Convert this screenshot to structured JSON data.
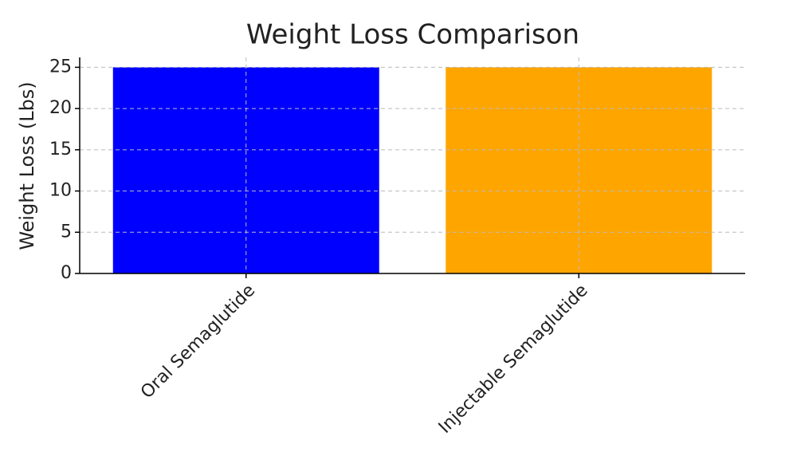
{
  "chart_data": {
    "type": "bar",
    "title": "Weight Loss Comparison",
    "y_label": "Weight Loss (Lbs)",
    "categories": [
      "Oral Semaglutide",
      "Injectable Semaglutide"
    ],
    "values": [
      25,
      25
    ],
    "colors": [
      "#0000ff",
      "#ffa500"
    ],
    "ylim": [
      0,
      26.2
    ],
    "yticks": [
      0,
      5,
      10,
      15,
      20,
      25
    ],
    "grid": true
  }
}
